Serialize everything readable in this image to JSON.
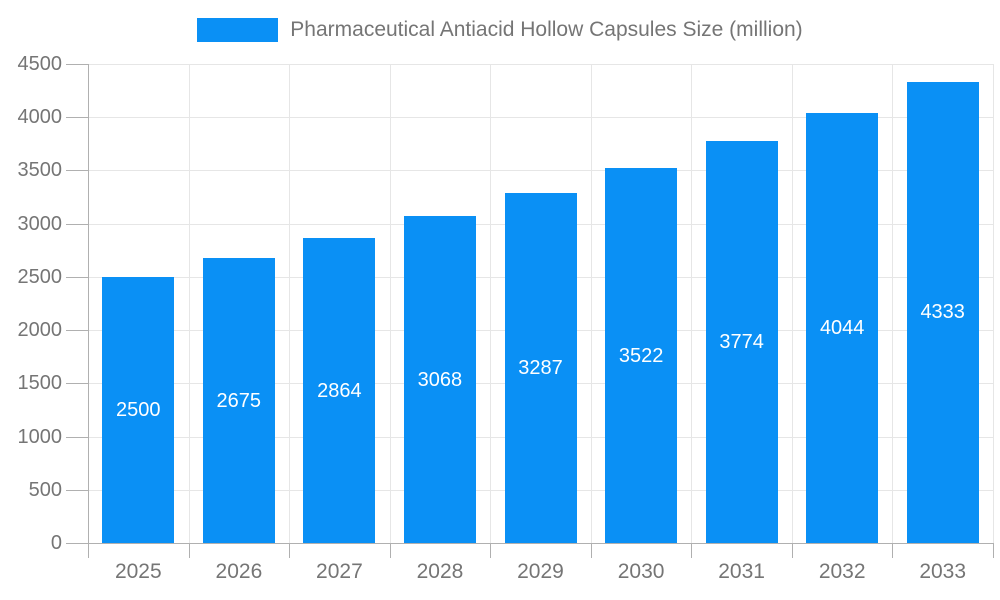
{
  "legend": {
    "series_label": "Pharmaceutical Antiacid Hollow Capsules Size (million)"
  },
  "chart_data": {
    "type": "bar",
    "title": "Pharmaceutical Antiacid Hollow Capsules Size (million)",
    "categories": [
      "2025",
      "2026",
      "2027",
      "2028",
      "2029",
      "2030",
      "2031",
      "2032",
      "2033"
    ],
    "values": [
      2500,
      2675,
      2864,
      3068,
      3287,
      3522,
      3774,
      4044,
      4333
    ],
    "series": [
      {
        "name": "Pharmaceutical Antiacid Hollow Capsules Size (million)",
        "values": [
          2500,
          2675,
          2864,
          3068,
          3287,
          3522,
          3774,
          4044,
          4333
        ]
      }
    ],
    "xlabel": "",
    "ylabel": "",
    "ylim": [
      0,
      4500
    ],
    "ytick_step": 500,
    "yticks": [
      0,
      500,
      1000,
      1500,
      2000,
      2500,
      3000,
      3500,
      4000,
      4500
    ],
    "grid": true,
    "legend_position": "top",
    "value_labels": "inside-center"
  },
  "colors": {
    "bar": "#0A90F5",
    "grid": "#E6E6E6",
    "axis": "#B0B0B0",
    "text": "#757575",
    "bar_label": "#FFFFFF",
    "background": "#FFFFFF"
  }
}
